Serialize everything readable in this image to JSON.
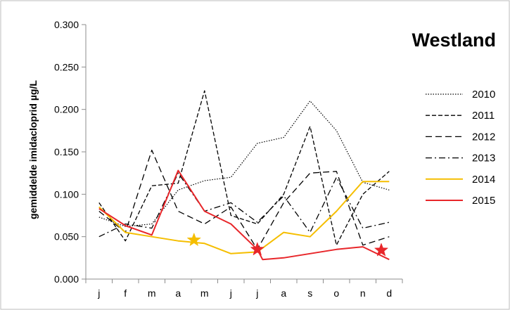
{
  "chart_data": {
    "type": "line",
    "title": "Westland",
    "xlabel": "",
    "ylabel": "gemiddelde imidacloprid µg/L",
    "categories": [
      "j",
      "f",
      "m",
      "a",
      "m",
      "j",
      "j",
      "a",
      "s",
      "o",
      "n",
      "d"
    ],
    "ylim": [
      0,
      0.3
    ],
    "yticks": [
      "0.000",
      "0.050",
      "0.100",
      "0.150",
      "0.200",
      "0.250",
      "0.300"
    ],
    "grid": false,
    "legend": "right",
    "series": [
      {
        "name": "2010",
        "style": "dotted",
        "color": "#000000",
        "x": [
          0,
          1,
          2,
          3,
          4,
          5,
          6,
          7,
          8,
          9,
          10,
          11
        ],
        "values": [
          0.073,
          0.062,
          0.065,
          0.105,
          0.116,
          0.12,
          0.16,
          0.167,
          0.21,
          0.175,
          0.114,
          0.105
        ]
      },
      {
        "name": "2011",
        "style": "dash",
        "color": "#000000",
        "x": [
          0,
          1,
          2,
          3,
          4,
          5,
          6,
          7,
          8,
          9,
          10,
          11
        ],
        "values": [
          0.09,
          0.045,
          0.11,
          0.113,
          0.222,
          0.075,
          0.065,
          0.1,
          0.18,
          0.04,
          0.1,
          0.127
        ]
      },
      {
        "name": "2012",
        "style": "longdash",
        "color": "#000000",
        "x": [
          0,
          1,
          2,
          3,
          4,
          5,
          6,
          7,
          8,
          9,
          10,
          11
        ],
        "values": [
          0.08,
          0.055,
          0.152,
          0.08,
          0.065,
          0.085,
          0.035,
          0.09,
          0.125,
          0.127,
          0.04,
          0.05
        ]
      },
      {
        "name": "2013",
        "style": "dashdot",
        "color": "#000000",
        "x": [
          0,
          1,
          2,
          3,
          4,
          5,
          6,
          7,
          8,
          9,
          10,
          11
        ],
        "values": [
          0.05,
          0.065,
          0.06,
          0.125,
          0.08,
          0.09,
          0.067,
          0.098,
          0.055,
          0.12,
          0.06,
          0.067
        ]
      },
      {
        "name": "2014",
        "style": "solid",
        "color": "#F5BE00",
        "x": [
          0,
          1,
          2,
          3,
          4,
          5,
          6,
          7,
          8,
          9,
          10,
          11
        ],
        "values": [
          0.085,
          0.055,
          0.05,
          0.045,
          0.042,
          0.03,
          0.032,
          0.055,
          0.05,
          0.08,
          0.115,
          0.115
        ]
      },
      {
        "name": "2015",
        "style": "solid",
        "color": "#E8262A",
        "x": [
          0,
          1,
          2,
          3,
          4,
          5,
          6,
          6.2,
          7,
          8,
          9,
          10,
          11
        ],
        "values": [
          0.083,
          0.063,
          0.052,
          0.128,
          0.08,
          0.065,
          0.035,
          0.023,
          0.025,
          0.03,
          0.035,
          0.038,
          0.023
        ]
      }
    ],
    "markers": [
      {
        "series": "2014",
        "shape": "star",
        "x": 3.6,
        "y": 0.046,
        "color": "#F5BE00"
      },
      {
        "series": "2015",
        "shape": "star",
        "x": 6.0,
        "y": 0.035,
        "color": "#E8262A"
      },
      {
        "series": "2015",
        "shape": "star",
        "x": 10.7,
        "y": 0.034,
        "color": "#E8262A"
      }
    ]
  }
}
